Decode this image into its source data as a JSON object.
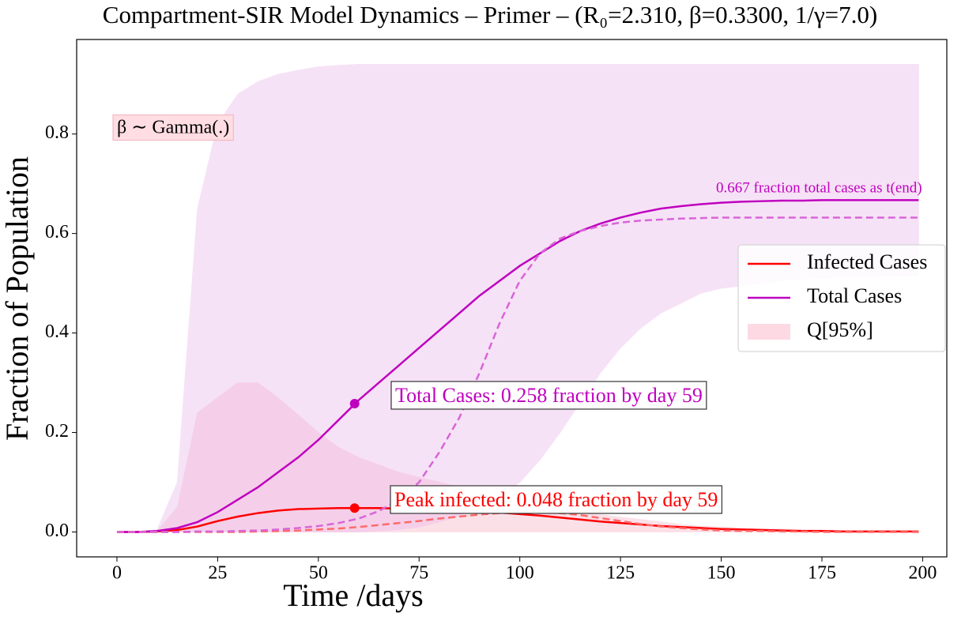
{
  "chart_data": {
    "type": "line",
    "title": "Compartment-SIR Model Dynamics – Primer – (R₀=2.310, β=0.3300, 1/γ=7.0)",
    "x_label": "Time /days",
    "y_label": "Fraction of Population",
    "xlim": [
      -10,
      206
    ],
    "ylim": [
      -0.05,
      0.99
    ],
    "xticks": [
      0,
      25,
      50,
      75,
      100,
      125,
      150,
      175,
      200
    ],
    "yticks": [
      {
        "value": 0,
        "label": "0.0"
      },
      0.2,
      0.4,
      0.6,
      0.8
    ],
    "legend": "center right",
    "x": [
      0,
      5,
      10,
      15,
      20,
      25,
      30,
      35,
      40,
      45,
      50,
      55,
      60,
      65,
      70,
      75,
      80,
      85,
      90,
      95,
      100,
      105,
      110,
      115,
      120,
      125,
      130,
      135,
      140,
      145,
      150,
      155,
      160,
      165,
      170,
      175,
      180,
      185,
      190,
      195,
      199
    ],
    "series": [
      {
        "name": "Infected Cases",
        "color": "#ff0000",
        "dash": false,
        "values": [
          0,
          0,
          0.001,
          0.004,
          0.011,
          0.022,
          0.031,
          0.038,
          0.043,
          0.046,
          0.047,
          0.048,
          0.048,
          0.048,
          0.047,
          0.046,
          0.045,
          0.043,
          0.041,
          0.039,
          0.036,
          0.033,
          0.029,
          0.025,
          0.021,
          0.018,
          0.015,
          0.012,
          0.01,
          0.008,
          0.006,
          0.005,
          0.004,
          0.003,
          0.002,
          0.002,
          0.001,
          0.001,
          0.001,
          0.001,
          0.001
        ]
      },
      {
        "name": "Total Cases",
        "color": "#bf00bf",
        "dash": false,
        "values": [
          0,
          0,
          0.002,
          0.008,
          0.02,
          0.04,
          0.065,
          0.09,
          0.12,
          0.15,
          0.185,
          0.225,
          0.265,
          0.3,
          0.335,
          0.37,
          0.405,
          0.44,
          0.475,
          0.505,
          0.535,
          0.56,
          0.585,
          0.605,
          0.62,
          0.632,
          0.642,
          0.65,
          0.655,
          0.659,
          0.662,
          0.664,
          0.665,
          0.666,
          0.666,
          0.667,
          0.667,
          0.667,
          0.667,
          0.667,
          0.667
        ]
      },
      {
        "color": "#ff6a6a",
        "dash": true,
        "values": [
          0,
          0,
          0,
          0,
          0,
          0,
          0,
          0.001,
          0.002,
          0.003,
          0.005,
          0.007,
          0.01,
          0.014,
          0.018,
          0.022,
          0.027,
          0.031,
          0.035,
          0.038,
          0.04,
          0.04,
          0.038,
          0.034,
          0.028,
          0.022,
          0.016,
          0.011,
          0.008,
          0.005,
          0.003,
          0.002,
          0.002,
          0.001,
          0.001,
          0,
          0,
          0,
          0,
          0,
          0
        ]
      },
      {
        "color": "#d865d8",
        "dash": true,
        "values": [
          0,
          0,
          0,
          0,
          0.001,
          0.001,
          0.002,
          0.003,
          0.005,
          0.008,
          0.012,
          0.018,
          0.027,
          0.042,
          0.065,
          0.1,
          0.16,
          0.23,
          0.32,
          0.42,
          0.505,
          0.56,
          0.59,
          0.605,
          0.615,
          0.622,
          0.626,
          0.628,
          0.63,
          0.631,
          0.632,
          0.632,
          0.632,
          0.632,
          0.632,
          0.632,
          0.632,
          0.632,
          0.632,
          0.632,
          0.632
        ]
      }
    ],
    "bands": [
      {
        "name": "Q[95%]",
        "color": "#f9b3c8",
        "lower": [
          0,
          0,
          0,
          0,
          0,
          0,
          0,
          0,
          0,
          0,
          0,
          0,
          0,
          0,
          0,
          0,
          0,
          0,
          0,
          0,
          0,
          0,
          0,
          0,
          0,
          0,
          0,
          0,
          0,
          0,
          0,
          0,
          0,
          0,
          0,
          0,
          0,
          0,
          0,
          0,
          0
        ],
        "upper": [
          0,
          0,
          0.002,
          0.05,
          0.24,
          0.27,
          0.3,
          0.3,
          0.27,
          0.235,
          0.2,
          0.17,
          0.15,
          0.135,
          0.12,
          0.11,
          0.1,
          0.09,
          0.08,
          0.07,
          0.06,
          0.052,
          0.045,
          0.04,
          0.035,
          0.03,
          0.025,
          0.02,
          0.015,
          0.012,
          0.01,
          0.008,
          0.007,
          0.006,
          0.005,
          0.004,
          0.003,
          0.002,
          0.002,
          0.001,
          0.001
        ]
      },
      {
        "color": "#ebb8eb",
        "lower": [
          0,
          0,
          0,
          0,
          0,
          0,
          0,
          0,
          0,
          0,
          0,
          0,
          0,
          0.002,
          0.005,
          0.01,
          0.02,
          0.033,
          0.05,
          0.07,
          0.1,
          0.145,
          0.2,
          0.26,
          0.32,
          0.37,
          0.41,
          0.44,
          0.46,
          0.48,
          0.49,
          0.495,
          0.5,
          0.505,
          0.508,
          0.51,
          0.512,
          0.513,
          0.514,
          0.515,
          0.515
        ],
        "upper": [
          0,
          0,
          0.005,
          0.1,
          0.65,
          0.82,
          0.88,
          0.905,
          0.92,
          0.928,
          0.935,
          0.938,
          0.94,
          0.94,
          0.94,
          0.94,
          0.94,
          0.94,
          0.94,
          0.94,
          0.94,
          0.94,
          0.94,
          0.94,
          0.94,
          0.94,
          0.94,
          0.94,
          0.94,
          0.94,
          0.94,
          0.94,
          0.94,
          0.94,
          0.94,
          0.94,
          0.94,
          0.94,
          0.94,
          0.94,
          0.94
        ]
      }
    ],
    "points": [
      {
        "x": 59,
        "y": 0.048,
        "color": "#ff0000"
      },
      {
        "x": 59,
        "y": 0.258,
        "color": "#bf00bf"
      }
    ],
    "annotations": [
      "β ∼ Gamma(.)",
      "0.667 fraction total cases as t(end)",
      "Total Cases: 0.258 fraction by day 59",
      "Peak infected: 0.048 fraction by day 59"
    ]
  }
}
